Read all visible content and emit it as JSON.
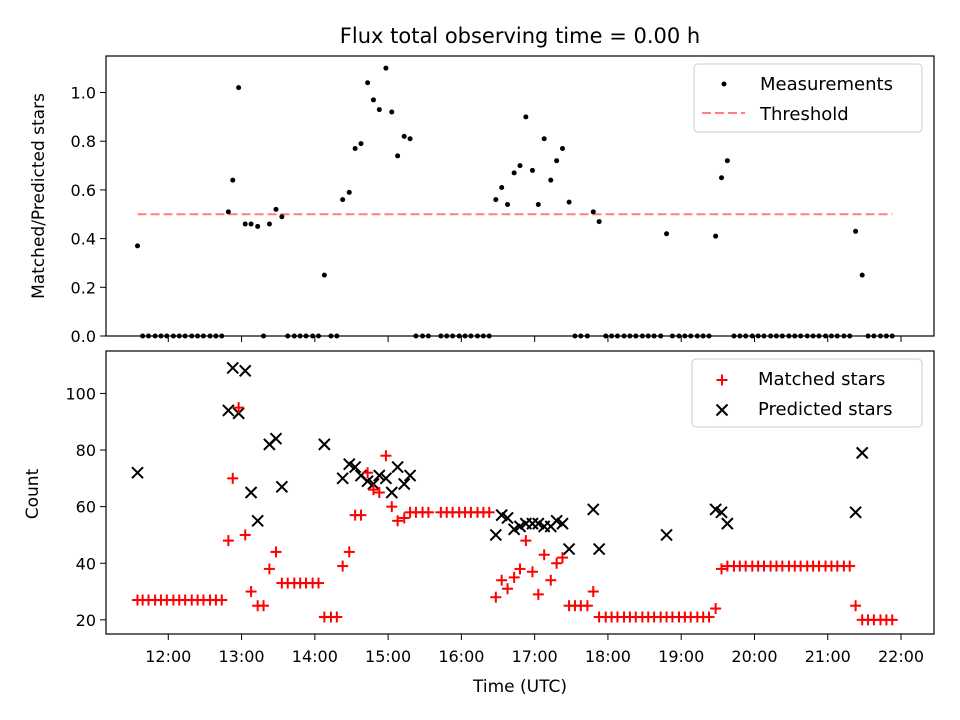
{
  "title": "Flux total observing time = 0.00 h",
  "chart_data": [
    {
      "type": "scatter",
      "ylabel": "Matched/Predicted stars",
      "xlim": [
        11.15,
        22.45
      ],
      "ylim": [
        0,
        1.15
      ],
      "yticks": [
        0.0,
        0.2,
        0.4,
        0.6,
        0.8,
        1.0
      ],
      "ytick_labels": [
        "0.0",
        "0.2",
        "0.4",
        "0.6",
        "0.8",
        "1.0"
      ],
      "legend": {
        "position": "top-right",
        "entries": [
          "Measurements",
          "Threshold"
        ]
      },
      "measurements": {
        "name": "Measurements",
        "color": "#000000",
        "x": [
          11.58,
          11.65,
          11.73,
          11.82,
          11.9,
          11.98,
          12.07,
          12.15,
          12.23,
          12.32,
          12.4,
          12.48,
          12.57,
          12.65,
          12.73,
          12.82,
          12.88,
          12.96,
          13.05,
          13.13,
          13.22,
          13.3,
          13.38,
          13.47,
          13.55,
          13.63,
          13.72,
          13.8,
          13.88,
          13.97,
          14.05,
          14.13,
          14.22,
          14.3,
          14.38,
          14.47,
          14.55,
          14.63,
          14.72,
          14.8,
          14.88,
          14.97,
          15.05,
          15.13,
          15.22,
          15.3,
          15.38,
          15.47,
          15.55,
          15.72,
          15.8,
          15.88,
          15.97,
          16.05,
          16.13,
          16.22,
          16.3,
          16.38,
          16.47,
          16.55,
          16.63,
          16.72,
          16.8,
          16.88,
          16.97,
          17.05,
          17.13,
          17.22,
          17.3,
          17.38,
          17.47,
          17.55,
          17.63,
          17.72,
          17.8,
          17.88,
          17.97,
          18.05,
          18.13,
          18.22,
          18.3,
          18.38,
          18.47,
          18.55,
          18.63,
          18.72,
          18.8,
          18.88,
          18.97,
          19.05,
          19.13,
          19.22,
          19.3,
          19.38,
          19.47,
          19.55,
          19.63,
          19.72,
          19.8,
          19.88,
          19.97,
          20.05,
          20.13,
          20.22,
          20.3,
          20.38,
          20.47,
          20.55,
          20.63,
          20.72,
          20.8,
          20.88,
          20.97,
          21.05,
          21.13,
          21.22,
          21.3,
          21.38,
          21.47,
          21.55,
          21.63,
          21.72,
          21.8,
          21.88
        ],
        "y": [
          0.37,
          0.0,
          0.0,
          0.0,
          0.0,
          0.0,
          0.0,
          0.0,
          0.0,
          0.0,
          0.0,
          0.0,
          0.0,
          0.0,
          0.0,
          0.51,
          0.64,
          1.02,
          0.46,
          0.46,
          0.45,
          0.0,
          0.46,
          0.52,
          0.49,
          0.0,
          0.0,
          0.0,
          0.0,
          0.0,
          0.0,
          0.25,
          0.0,
          0.0,
          0.56,
          0.59,
          0.77,
          0.79,
          1.04,
          0.97,
          0.93,
          1.1,
          0.92,
          0.74,
          0.82,
          0.81,
          0.0,
          0.0,
          0.0,
          0.0,
          0.0,
          0.0,
          0.0,
          0.0,
          0.0,
          0.0,
          0.0,
          0.0,
          0.56,
          0.61,
          0.54,
          0.67,
          0.7,
          0.9,
          0.68,
          0.54,
          0.81,
          0.64,
          0.72,
          0.77,
          0.55,
          0.0,
          0.0,
          0.0,
          0.51,
          0.47,
          0.0,
          0.0,
          0.0,
          0.0,
          0.0,
          0.0,
          0.0,
          0.0,
          0.0,
          0.0,
          0.42,
          0.0,
          0.0,
          0.0,
          0.0,
          0.0,
          0.0,
          0.0,
          0.41,
          0.65,
          0.72,
          0.0,
          0.0,
          0.0,
          0.0,
          0.0,
          0.0,
          0.0,
          0.0,
          0.0,
          0.0,
          0.0,
          0.0,
          0.0,
          0.0,
          0.0,
          0.0,
          0.0,
          0.0,
          0.0,
          0.0,
          0.43,
          0.25,
          0.0,
          0.0,
          0.0,
          0.0,
          0.0
        ]
      },
      "threshold": {
        "name": "Threshold",
        "value": 0.5,
        "x_range": [
          11.58,
          21.88
        ],
        "color": "#ff7f7f"
      }
    },
    {
      "type": "scatter",
      "xlabel": "Time (UTC)",
      "ylabel": "Count",
      "xlim": [
        11.15,
        22.45
      ],
      "ylim": [
        15,
        115
      ],
      "yticks": [
        20,
        40,
        60,
        80,
        100
      ],
      "ytick_labels": [
        "20",
        "40",
        "60",
        "80",
        "100"
      ],
      "xticks": [
        12,
        13,
        14,
        15,
        16,
        17,
        18,
        19,
        20,
        21,
        22
      ],
      "xtick_labels": [
        "12:00",
        "13:00",
        "14:00",
        "15:00",
        "16:00",
        "17:00",
        "18:00",
        "19:00",
        "20:00",
        "21:00",
        "22:00"
      ],
      "legend": {
        "position": "top-right",
        "entries": [
          "Matched stars",
          "Predicted stars"
        ]
      },
      "matched": {
        "name": "Matched stars",
        "color": "#ff0000",
        "marker": "+",
        "x": [
          11.58,
          11.65,
          11.73,
          11.82,
          11.9,
          11.98,
          12.07,
          12.15,
          12.23,
          12.32,
          12.4,
          12.48,
          12.57,
          12.65,
          12.73,
          12.82,
          12.88,
          12.96,
          13.05,
          13.13,
          13.22,
          13.3,
          13.38,
          13.47,
          13.55,
          13.63,
          13.72,
          13.8,
          13.88,
          13.97,
          14.05,
          14.13,
          14.22,
          14.3,
          14.38,
          14.47,
          14.55,
          14.63,
          14.72,
          14.8,
          14.88,
          14.97,
          15.05,
          15.13,
          15.22,
          15.3,
          15.38,
          15.47,
          15.55,
          15.72,
          15.8,
          15.88,
          15.97,
          16.05,
          16.13,
          16.22,
          16.3,
          16.38,
          16.47,
          16.55,
          16.63,
          16.72,
          16.8,
          16.88,
          16.97,
          17.05,
          17.13,
          17.22,
          17.3,
          17.38,
          17.47,
          17.55,
          17.63,
          17.72,
          17.8,
          17.88,
          17.97,
          18.05,
          18.13,
          18.22,
          18.3,
          18.38,
          18.47,
          18.55,
          18.63,
          18.72,
          18.8,
          18.88,
          18.97,
          19.05,
          19.13,
          19.22,
          19.3,
          19.38,
          19.47,
          19.55,
          19.63,
          19.72,
          19.8,
          19.88,
          19.97,
          20.05,
          20.13,
          20.22,
          20.3,
          20.38,
          20.47,
          20.55,
          20.63,
          20.72,
          20.8,
          20.88,
          20.97,
          21.05,
          21.13,
          21.22,
          21.3,
          21.38,
          21.47,
          21.55,
          21.63,
          21.72,
          21.8,
          21.88
        ],
        "y": [
          27,
          27,
          27,
          27,
          27,
          27,
          27,
          27,
          27,
          27,
          27,
          27,
          27,
          27,
          27,
          48,
          70,
          95,
          50,
          30,
          25,
          25,
          38,
          44,
          33,
          33,
          33,
          33,
          33,
          33,
          33,
          21,
          21,
          21,
          39,
          44,
          57,
          57,
          72,
          66,
          65,
          78,
          60,
          55,
          56,
          58,
          58,
          58,
          58,
          58,
          58,
          58,
          58,
          58,
          58,
          58,
          58,
          58,
          28,
          34,
          31,
          35,
          38,
          48,
          37,
          29,
          43,
          34,
          40,
          42,
          25,
          25,
          25,
          25,
          30,
          21,
          21,
          21,
          21,
          21,
          21,
          21,
          21,
          21,
          21,
          21,
          21,
          21,
          21,
          21,
          21,
          21,
          21,
          21,
          24,
          38,
          39,
          39,
          39,
          39,
          39,
          39,
          39,
          39,
          39,
          39,
          39,
          39,
          39,
          39,
          39,
          39,
          39,
          39,
          39,
          39,
          39,
          25,
          20,
          20,
          20,
          20,
          20,
          20
        ]
      },
      "predicted": {
        "name": "Predicted stars",
        "color": "#000000",
        "marker": "x",
        "x": [
          11.58,
          12.82,
          12.88,
          12.96,
          13.05,
          13.13,
          13.22,
          13.38,
          13.47,
          13.55,
          14.13,
          14.38,
          14.47,
          14.55,
          14.63,
          14.72,
          14.8,
          14.88,
          14.97,
          15.05,
          15.13,
          15.22,
          15.3,
          16.47,
          16.55,
          16.63,
          16.72,
          16.8,
          16.88,
          16.97,
          17.05,
          17.13,
          17.22,
          17.3,
          17.38,
          17.47,
          17.8,
          17.88,
          18.8,
          19.47,
          19.55,
          19.63,
          21.38,
          21.47
        ],
        "y": [
          72,
          94,
          109,
          93,
          108,
          65,
          55,
          82,
          84,
          67,
          82,
          70,
          75,
          74,
          71,
          69,
          68,
          71,
          70,
          65,
          74,
          68,
          71,
          50,
          57,
          56,
          52,
          53,
          54,
          54,
          54,
          53,
          53,
          55,
          54,
          45,
          59,
          45,
          50,
          59,
          58,
          54,
          58,
          79
        ]
      }
    }
  ]
}
